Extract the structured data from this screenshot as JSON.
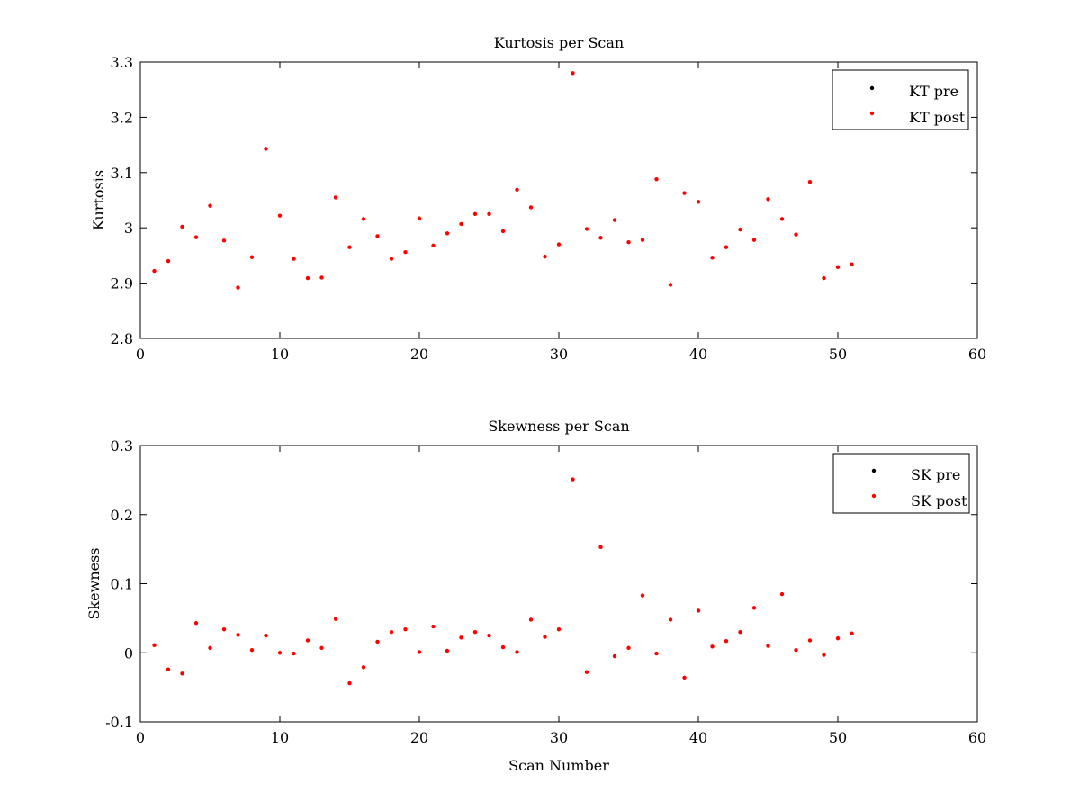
{
  "chart_data": [
    {
      "type": "scatter",
      "title": "Kurtosis per Scan",
      "xlabel": "",
      "ylabel": "Kurtosis",
      "xlim": [
        0,
        60
      ],
      "ylim": [
        2.8,
        3.3
      ],
      "xticks": [
        "0",
        "10",
        "20",
        "30",
        "40",
        "50",
        "60"
      ],
      "yticks": [
        "2.8",
        "2.9",
        "3",
        "3.1",
        "3.2",
        "3.3"
      ],
      "grid": false,
      "legend_position": "top-right",
      "series": [
        {
          "name": "KT pre",
          "color": "#000000",
          "x": [],
          "y": []
        },
        {
          "name": "KT post",
          "color": "#ff0000",
          "x": [
            1,
            2,
            3,
            4,
            5,
            6,
            7,
            8,
            9,
            10,
            11,
            12,
            13,
            14,
            15,
            16,
            17,
            18,
            19,
            20,
            21,
            22,
            23,
            24,
            25,
            26,
            27,
            28,
            29,
            30,
            31,
            32,
            33,
            34,
            35,
            36,
            37,
            38,
            39,
            40,
            41,
            42,
            43,
            44,
            45,
            46,
            47,
            48,
            49,
            50,
            51
          ],
          "y": [
            2.922,
            2.94,
            3.002,
            2.983,
            3.04,
            2.977,
            2.892,
            2.947,
            3.143,
            3.022,
            2.944,
            2.909,
            2.91,
            3.055,
            2.965,
            3.016,
            2.985,
            2.944,
            2.956,
            3.017,
            2.968,
            2.99,
            3.007,
            3.025,
            3.025,
            2.994,
            3.069,
            3.037,
            2.948,
            2.97,
            3.28,
            2.998,
            2.982,
            3.014,
            2.974,
            2.978,
            3.088,
            2.897,
            3.063,
            3.047,
            2.946,
            2.965,
            2.997,
            2.978,
            3.052,
            3.016,
            2.988,
            3.083,
            2.909,
            2.929,
            2.934
          ]
        }
      ]
    },
    {
      "type": "scatter",
      "title": "Skewness per Scan",
      "xlabel": "Scan Number",
      "ylabel": "Skewness",
      "xlim": [
        0,
        60
      ],
      "ylim": [
        -0.1,
        0.3
      ],
      "xticks": [
        "0",
        "10",
        "20",
        "30",
        "40",
        "50",
        "60"
      ],
      "yticks": [
        "-0.1",
        "0",
        "0.1",
        "0.2",
        "0.3"
      ],
      "grid": false,
      "legend_position": "top-right",
      "series": [
        {
          "name": "SK pre",
          "color": "#000000",
          "x": [],
          "y": []
        },
        {
          "name": "SK post",
          "color": "#ff0000",
          "x": [
            1,
            2,
            3,
            4,
            5,
            6,
            7,
            8,
            9,
            10,
            11,
            12,
            13,
            14,
            15,
            16,
            17,
            18,
            19,
            20,
            21,
            22,
            23,
            24,
            25,
            26,
            27,
            28,
            29,
            30,
            31,
            32,
            33,
            34,
            35,
            36,
            37,
            38,
            39,
            40,
            41,
            42,
            43,
            44,
            45,
            46,
            47,
            48,
            49,
            50,
            51
          ],
          "y": [
            0.011,
            -0.024,
            -0.03,
            0.043,
            0.007,
            0.034,
            0.026,
            0.004,
            0.025,
            0.0,
            -0.001,
            0.018,
            0.007,
            0.049,
            -0.044,
            -0.021,
            0.016,
            0.03,
            0.034,
            0.001,
            0.038,
            0.003,
            0.022,
            0.03,
            0.025,
            0.008,
            0.001,
            0.048,
            0.023,
            0.034,
            0.251,
            -0.028,
            0.153,
            -0.005,
            0.007,
            0.083,
            -0.001,
            0.048,
            -0.036,
            0.061,
            0.009,
            0.017,
            0.03,
            0.065,
            0.01,
            0.085,
            0.004,
            0.018,
            -0.003,
            0.021,
            0.028
          ]
        }
      ]
    }
  ]
}
